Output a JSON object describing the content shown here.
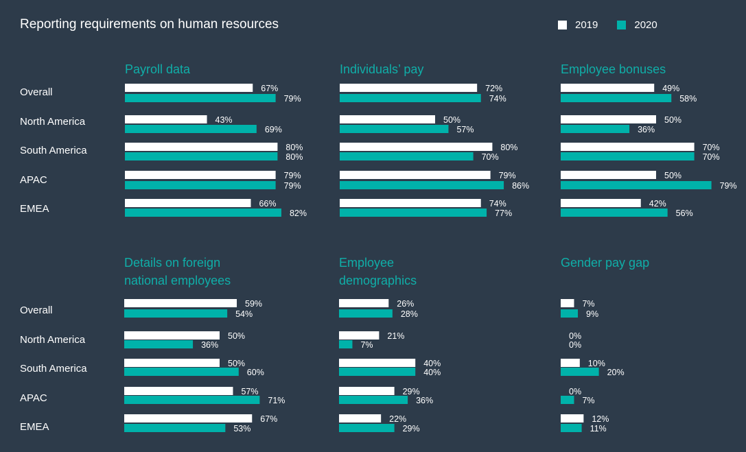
{
  "chart_data": {
    "type": "bar",
    "orientation": "horizontal",
    "title": "Reporting requirements on human resources",
    "categories": [
      "Overall",
      "North America",
      "South America",
      "APAC",
      "EMEA"
    ],
    "legend": {
      "position": "top-right",
      "entries": [
        {
          "name": "2019",
          "color": "#ffffff"
        },
        {
          "name": "2020",
          "color": "#00b2aa"
        }
      ]
    },
    "value_suffix": "%",
    "panels": [
      {
        "title_lines": [
          "Payroll data"
        ],
        "series": [
          {
            "name": "2019",
            "values": [
              67,
              43,
              80,
              79,
              66
            ]
          },
          {
            "name": "2020",
            "values": [
              79,
              69,
              80,
              79,
              82
            ]
          }
        ]
      },
      {
        "title_lines": [
          "Individuals’ pay"
        ],
        "series": [
          {
            "name": "2019",
            "values": [
              72,
              50,
              80,
              79,
              74
            ]
          },
          {
            "name": "2020",
            "values": [
              74,
              57,
              70,
              86,
              77
            ]
          }
        ]
      },
      {
        "title_lines": [
          "Employee bonuses"
        ],
        "series": [
          {
            "name": "2019",
            "values": [
              49,
              50,
              70,
              50,
              42
            ]
          },
          {
            "name": "2020",
            "values": [
              58,
              36,
              70,
              79,
              56
            ]
          }
        ]
      },
      {
        "title_lines": [
          "Details on foreign",
          "national employees"
        ],
        "series": [
          {
            "name": "2019",
            "values": [
              59,
              50,
              50,
              57,
              67
            ]
          },
          {
            "name": "2020",
            "values": [
              54,
              36,
              60,
              71,
              53
            ]
          }
        ]
      },
      {
        "title_lines": [
          "Employee",
          "demographics"
        ],
        "series": [
          {
            "name": "2019",
            "values": [
              26,
              21,
              40,
              29,
              22
            ]
          },
          {
            "name": "2020",
            "values": [
              28,
              7,
              40,
              36,
              29
            ]
          }
        ]
      },
      {
        "title_lines": [
          "Gender pay gap"
        ],
        "series": [
          {
            "name": "2019",
            "values": [
              7,
              0,
              10,
              0,
              12
            ]
          },
          {
            "name": "2020",
            "values": [
              9,
              0,
              20,
              7,
              11
            ]
          }
        ]
      }
    ]
  }
}
